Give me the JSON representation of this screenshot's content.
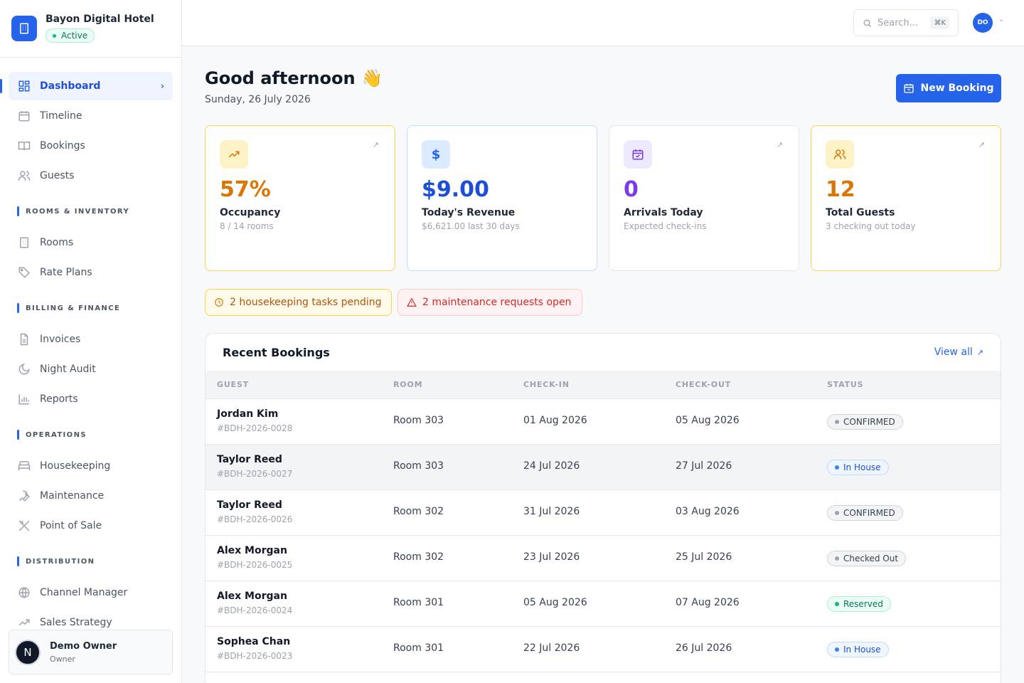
{
  "brand": {
    "name": "Bayon Digital Hotel",
    "status": "Active"
  },
  "nav": {
    "dashboard": "Dashboard",
    "timeline": "Timeline",
    "bookings": "Bookings",
    "guests": "Guests",
    "section_rooms": "ROOMS & INVENTORY",
    "rooms": "Rooms",
    "rate_plans": "Rate Plans",
    "section_billing": "BILLING & FINANCE",
    "invoices": "Invoices",
    "night_audit": "Night Audit",
    "reports": "Reports",
    "section_operations": "OPERATIONS",
    "housekeeping": "Housekeeping",
    "maintenance": "Maintenance",
    "pos": "Point of Sale",
    "section_distribution": "DISTRIBUTION",
    "channel_manager": "Channel Manager",
    "sales_strategy": "Sales Strategy"
  },
  "user": {
    "initial": "N",
    "name": "Demo Owner",
    "role": "Owner"
  },
  "topbar": {
    "search_placeholder": "Search...",
    "shortcut": "⌘K",
    "avatar": "DO"
  },
  "header": {
    "greeting": "Good afternoon 👋",
    "date": "Sunday, 26 July 2026",
    "new_booking": "New Booking"
  },
  "stats": {
    "occupancy": {
      "value": "57%",
      "label": "Occupancy",
      "sub": "8 / 14 rooms"
    },
    "revenue": {
      "value": "$9.00",
      "label": "Today's Revenue",
      "sub": "$6,621.00 last 30 days"
    },
    "arrivals": {
      "value": "0",
      "label": "Arrivals Today",
      "sub": "Expected check-ins"
    },
    "guests": {
      "value": "12",
      "label": "Total Guests",
      "sub": "3 checking out today"
    }
  },
  "alerts": {
    "housekeeping": "2 housekeeping tasks pending",
    "maintenance": "2 maintenance requests open"
  },
  "recent": {
    "title": "Recent Bookings",
    "view_all": "View all",
    "columns": [
      "GUEST",
      "ROOM",
      "CHECK-IN",
      "CHECK-OUT",
      "STATUS"
    ],
    "rows": [
      {
        "guest": "Jordan Kim",
        "ref": "#BDH-2026-0028",
        "room": "Room 303",
        "checkin": "01 Aug 2026",
        "checkout": "05 Aug 2026",
        "status": "CONFIRMED"
      },
      {
        "guest": "Taylor Reed",
        "ref": "#BDH-2026-0027",
        "room": "Room 303",
        "checkin": "24 Jul 2026",
        "checkout": "27 Jul 2026",
        "status": "In House"
      },
      {
        "guest": "Taylor Reed",
        "ref": "#BDH-2026-0026",
        "room": "Room 302",
        "checkin": "31 Jul 2026",
        "checkout": "03 Aug 2026",
        "status": "CONFIRMED"
      },
      {
        "guest": "Alex Morgan",
        "ref": "#BDH-2026-0025",
        "room": "Room 302",
        "checkin": "23 Jul 2026",
        "checkout": "25 Jul 2026",
        "status": "Checked Out"
      },
      {
        "guest": "Alex Morgan",
        "ref": "#BDH-2026-0024",
        "room": "Room 301",
        "checkin": "05 Aug 2026",
        "checkout": "07 Aug 2026",
        "status": "Reserved"
      },
      {
        "guest": "Sophea Chan",
        "ref": "#BDH-2026-0023",
        "room": "Room 301",
        "checkin": "22 Jul 2026",
        "checkout": "26 Jul 2026",
        "status": "In House"
      }
    ]
  },
  "colors": {
    "primary": "#2563eb",
    "occupancy": "#d97706",
    "revenue": "#1d4ed8",
    "arrivals": "#7c3aed",
    "guests": "#d97706"
  }
}
